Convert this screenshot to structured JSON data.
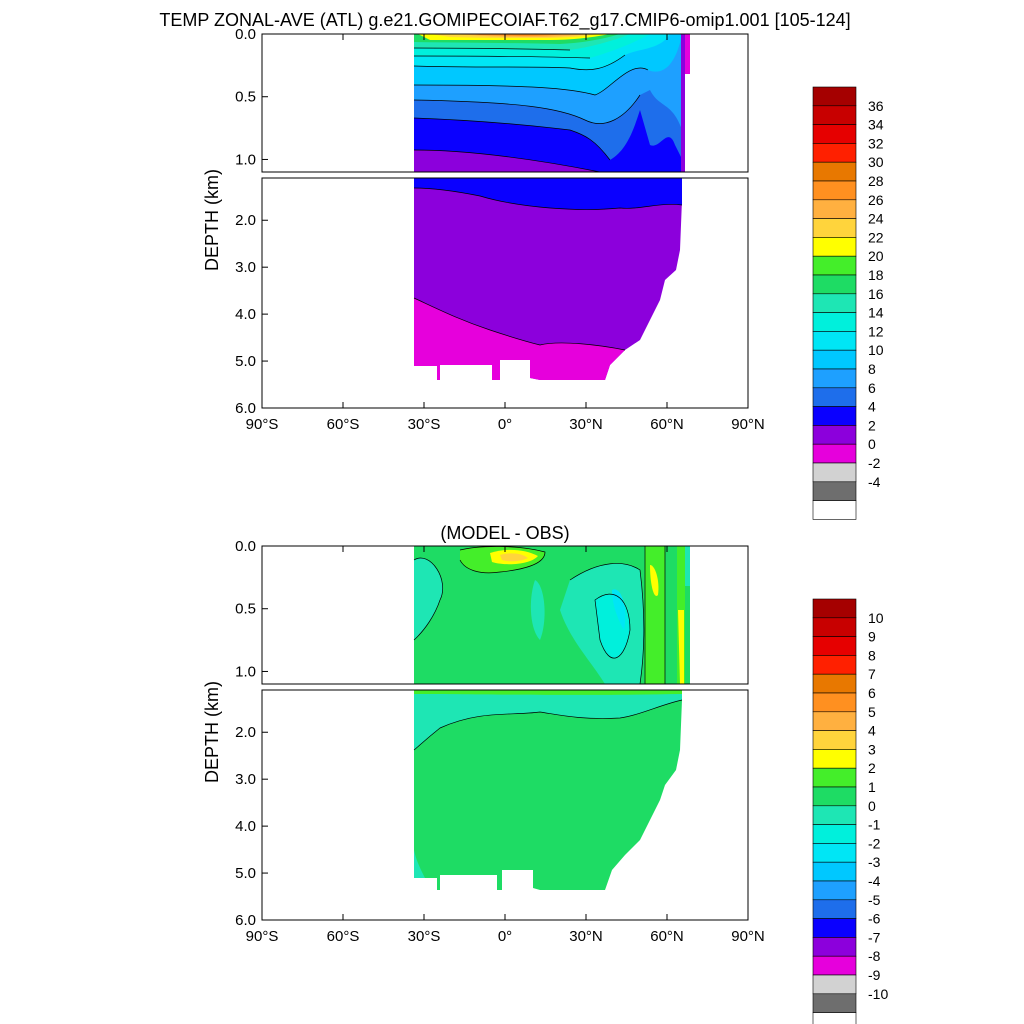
{
  "page_title": "TEMP ZONAL-AVE (ATL) g.e21.GOMIPECOIAF.T62_g17.CMIP6-omip1.001 [105-124]",
  "chart_data": [
    {
      "type": "heatmap",
      "title": "",
      "ylabel": "DEPTH (km)",
      "x_ticks": [
        "90°S",
        "60°S",
        "30°S",
        "0°",
        "30°N",
        "60°N",
        "90°N"
      ],
      "x_tick_values": [
        -90,
        -60,
        -30,
        0,
        30,
        60,
        90
      ],
      "y_ticks_upper": [
        "0.0",
        "0.5",
        "1.0"
      ],
      "y_tick_values_upper": [
        0.0,
        0.5,
        1.0
      ],
      "y_ticks_lower": [
        "2.0",
        "3.0",
        "4.0",
        "5.0",
        "6.0"
      ],
      "y_tick_values_lower": [
        2.0,
        3.0,
        4.0,
        5.0,
        6.0
      ],
      "xlim": [
        -90,
        90
      ],
      "ylim_upper": [
        0,
        1.1
      ],
      "ylim_lower": [
        1.1,
        6.0
      ],
      "colorbar_labels": [
        "36",
        "34",
        "32",
        "30",
        "28",
        "26",
        "24",
        "22",
        "20",
        "18",
        "16",
        "14",
        "12",
        "10",
        "8",
        "6",
        "4",
        "2",
        "0",
        "-2",
        "-4"
      ],
      "colorbar_colors": [
        "#a50000",
        "#c80000",
        "#e60000",
        "#ff2000",
        "#e87800",
        "#ff9020",
        "#ffb040",
        "#ffd43c",
        "#ffff00",
        "#44ee2a",
        "#1edc64",
        "#1ee6b4",
        "#00f0dc",
        "#00e6f5",
        "#00c8ff",
        "#1ea0ff",
        "#1e6eeb",
        "#0a00ff",
        "#8c00dc",
        "#e600dc",
        "#d2d2d2",
        "#6e6e6e",
        "#ffffff"
      ]
    },
    {
      "type": "heatmap",
      "title": "(MODEL - OBS)",
      "ylabel": "DEPTH (km)",
      "x_ticks": [
        "90°S",
        "60°S",
        "30°S",
        "0°",
        "30°N",
        "60°N",
        "90°N"
      ],
      "x_tick_values": [
        -90,
        -60,
        -30,
        0,
        30,
        60,
        90
      ],
      "y_ticks_upper": [
        "0.0",
        "0.5",
        "1.0"
      ],
      "y_tick_values_upper": [
        0.0,
        0.5,
        1.0
      ],
      "y_ticks_lower": [
        "2.0",
        "3.0",
        "4.0",
        "5.0",
        "6.0"
      ],
      "y_tick_values_lower": [
        2.0,
        3.0,
        4.0,
        5.0,
        6.0
      ],
      "xlim": [
        -90,
        90
      ],
      "ylim_upper": [
        0,
        1.1
      ],
      "ylim_lower": [
        1.1,
        6.0
      ],
      "colorbar_labels": [
        "10",
        "9",
        "8",
        "7",
        "6",
        "5",
        "4",
        "3",
        "2",
        "1",
        "0",
        "-1",
        "-2",
        "-3",
        "-4",
        "-5",
        "-6",
        "-7",
        "-8",
        "-9",
        "-10"
      ],
      "colorbar_colors": [
        "#a50000",
        "#c80000",
        "#e60000",
        "#ff2000",
        "#e87800",
        "#ff9020",
        "#ffb040",
        "#ffd43c",
        "#ffff00",
        "#44ee2a",
        "#1edc64",
        "#1ee6b4",
        "#00f0dc",
        "#00e6f5",
        "#00c8ff",
        "#1ea0ff",
        "#1e6eeb",
        "#0a00ff",
        "#8c00dc",
        "#e600dc",
        "#d2d2d2",
        "#6e6e6e",
        "#ffffff"
      ]
    }
  ]
}
